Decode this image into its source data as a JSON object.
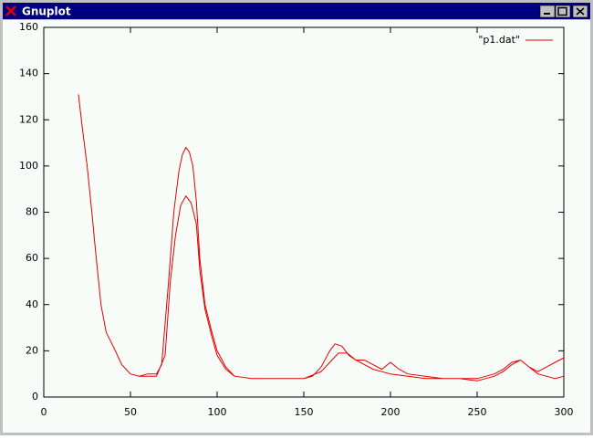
{
  "window": {
    "title": "Gnuplot"
  },
  "chart_data": {
    "type": "line",
    "x": [
      20,
      22,
      25,
      28,
      30,
      33,
      36,
      40,
      45,
      50,
      55,
      60,
      65,
      68,
      72,
      75,
      78,
      80,
      82,
      84,
      86,
      88,
      90,
      93,
      97,
      100,
      105,
      110,
      120,
      130,
      140,
      150,
      155,
      160,
      165,
      168,
      172,
      176,
      180,
      185,
      190,
      195,
      200,
      205,
      210,
      220,
      230,
      240,
      250,
      260,
      265,
      270,
      275,
      280,
      285,
      290,
      295,
      300,
      null,
      20,
      22,
      25,
      28,
      30,
      33,
      36,
      40,
      45,
      50,
      55,
      60,
      65,
      70,
      73,
      76,
      79,
      82,
      85,
      88,
      90,
      93,
      97,
      100,
      105,
      110,
      120,
      130,
      140,
      150,
      160,
      165,
      170,
      175,
      180,
      185,
      190,
      195,
      200,
      210,
      220,
      230,
      240,
      250,
      260,
      265,
      270,
      275,
      280,
      285,
      290,
      295,
      300
    ],
    "series": [
      {
        "name": "\"p1.dat\"",
        "color": "#e00000",
        "values": [
          131,
          118,
          100,
          78,
          62,
          40,
          28,
          22,
          14,
          10,
          9,
          10,
          10,
          14,
          50,
          80,
          98,
          105,
          108,
          106,
          100,
          85,
          60,
          40,
          28,
          20,
          13,
          9,
          8,
          8,
          8,
          8,
          9,
          13,
          20,
          23,
          22,
          18,
          16,
          16,
          14,
          12,
          15,
          12,
          10,
          9,
          8,
          8,
          7,
          9,
          11,
          14,
          16,
          13,
          11,
          13,
          15,
          17,
          null,
          131,
          118,
          100,
          78,
          62,
          40,
          28,
          22,
          14,
          10,
          9,
          9,
          9,
          18,
          50,
          70,
          83,
          87,
          84,
          75,
          55,
          38,
          26,
          18,
          12,
          9,
          8,
          8,
          8,
          8,
          11,
          15,
          19,
          19,
          16,
          14,
          12,
          11,
          10,
          9,
          8,
          8,
          8,
          8,
          10,
          12,
          15,
          16,
          13,
          10,
          9,
          8,
          9
        ]
      }
    ],
    "xlim": [
      0,
      300
    ],
    "ylim": [
      0,
      160
    ],
    "xticks": [
      0,
      50,
      100,
      150,
      200,
      250,
      300
    ],
    "yticks": [
      0,
      20,
      40,
      60,
      80,
      100,
      120,
      140,
      160
    ],
    "legend": "top-right"
  }
}
